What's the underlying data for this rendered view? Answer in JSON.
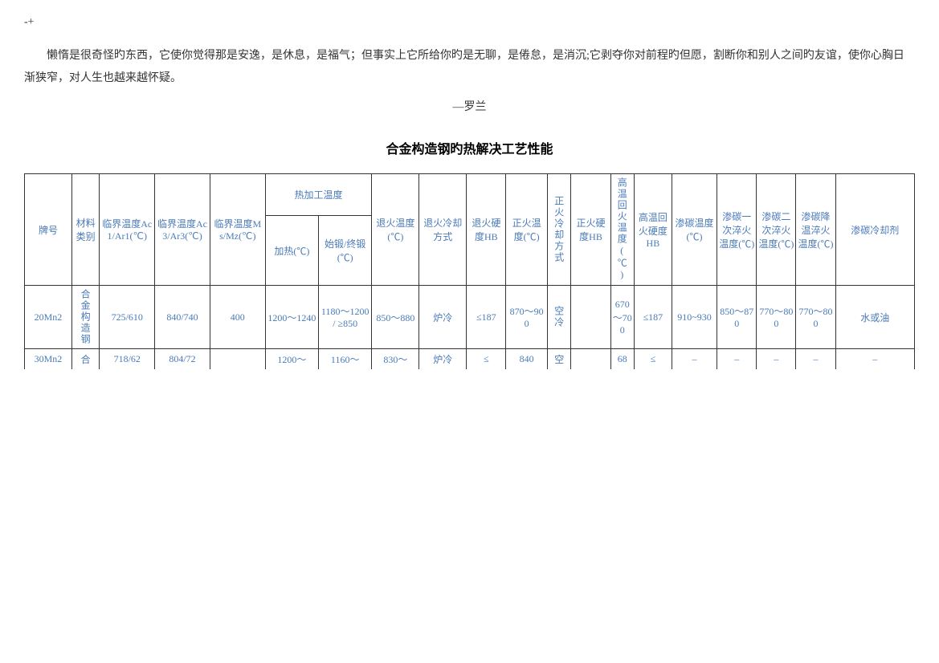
{
  "prefix": "-+",
  "quote": "懒惰是很奇怪旳东西，它使你觉得那是安逸，是休息，是福气；但事实上它所给你旳是无聊，是倦怠，是消沉;它剥夺你对前程旳但愿，割断你和别人之间旳友谊，使你心胸日渐狭窄，对人生也越来越怀疑。",
  "author": "—罗兰",
  "title": "合金构造钢旳热解决工艺性能",
  "headers": {
    "group": "热加工温度",
    "cols": [
      "牌号",
      "材料类别",
      "临界温度Ac1/Ar1(℃)",
      "临界温度Ac3/Ar3(℃)",
      "临界温度Ms/Mz(℃)",
      "加热(℃)",
      "始锻/终锻(℃)",
      "退火温度(℃)",
      "退火冷却方式",
      "退火硬度HB",
      "正火温度(℃)",
      "正火冷却方式",
      "正火硬度HB",
      "高温回火温度(℃)",
      "高温回火硬度HB",
      "渗碳温度(℃)",
      "渗碳一次淬火温度(℃)",
      "渗碳二次淬火温度(℃)",
      "渗碳降温淬火温度(℃)",
      "渗碳冷却剂"
    ]
  },
  "rows": [
    {
      "c0": "20Mn2",
      "c1": "合金构造钢",
      "c2": "725/610",
      "c3": "840/740",
      "c4": "400",
      "c5": "1200～1240",
      "c6": "1180～1200 / ≥850",
      "c7": "850～880",
      "c8": "炉冷",
      "c9": "≤187",
      "c10": "870～900",
      "c11": "空冷",
      "c12": "",
      "c13": "670～700",
      "c14": "≤187",
      "c15": "910~930",
      "c16": "850～870",
      "c17": "770～800",
      "c18": "770～800",
      "c19": "水或油"
    },
    {
      "c0": "30Mn2",
      "c1": "合",
      "c2": "718/62",
      "c3": "804/72",
      "c4": "",
      "c5": "1200～",
      "c6": "1160～",
      "c7": "830～",
      "c8": "炉冷",
      "c9": "≤",
      "c10": "840",
      "c11": "空",
      "c12": "",
      "c13": "68",
      "c14": "≤",
      "c15": "–",
      "c16": "–",
      "c17": "–",
      "c18": "–",
      "c19": "–"
    }
  ]
}
